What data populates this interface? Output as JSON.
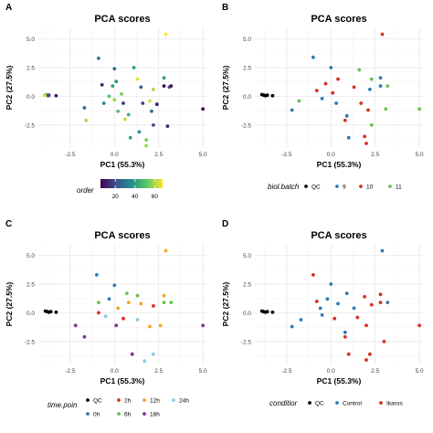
{
  "panels": [
    {
      "letter": "A",
      "title": "PCA scores"
    },
    {
      "letter": "B",
      "title": "PCA scores"
    },
    {
      "letter": "C",
      "title": "PCA scores"
    },
    {
      "letter": "D",
      "title": "PCA scores"
    }
  ],
  "colors": {
    "qc": "#000000",
    "batch_9": "#2c7bb6",
    "batch_10": "#d7301f",
    "batch_11": "#66c24a",
    "control": "#2c7bb6",
    "ikaros": "#d7301f",
    "viridis": [
      "#440154",
      "#3b528b",
      "#21908c",
      "#5dc863",
      "#fde725"
    ]
  },
  "legends": {
    "A": {
      "title": "order",
      "ticks": [
        "20",
        "40",
        "60"
      ],
      "range": [
        5,
        68
      ]
    },
    "B": {
      "title": "biol.batch",
      "items": [
        {
          "label": "QC",
          "color": "#000000"
        },
        {
          "label": "9",
          "color": "#2c7bb6"
        },
        {
          "label": "10",
          "color": "#d7301f"
        },
        {
          "label": "11",
          "color": "#66c24a"
        }
      ]
    },
    "C": {
      "title": "time.poin",
      "items": [
        {
          "label": "QC",
          "color": "#000000"
        },
        {
          "label": "2h",
          "color": "#d7301f"
        },
        {
          "label": "12h",
          "color": "#f5a623"
        },
        {
          "label": "24h",
          "color": "#8ecae6"
        },
        {
          "label": "0h",
          "color": "#2c7bb6"
        },
        {
          "label": "6h",
          "color": "#66c24a"
        },
        {
          "label": "18h",
          "color": "#7b3294"
        }
      ]
    },
    "D": {
      "title": "conditior",
      "items": [
        {
          "label": "QC",
          "color": "#000000"
        },
        {
          "label": "Control",
          "color": "#2c7bb6"
        },
        {
          "label": "Ikaros",
          "color": "#d7301f"
        }
      ]
    }
  },
  "chart_data": [
    {
      "type": "scatter",
      "panel": "A",
      "title": "PCA scores",
      "xlabel": "PC1 (55.3%)",
      "ylabel": "PC2 (27.5%)",
      "xlim": [
        -4.3,
        5.2
      ],
      "ylim": [
        -4.5,
        6.0
      ],
      "xticks": [
        -2.5,
        0.0,
        2.5,
        5.0
      ],
      "yticks": [
        -2.5,
        0.0,
        2.5,
        5.0
      ],
      "xtick_labels": [
        "-2.5",
        "0.0",
        "2.5",
        "5.0"
      ],
      "ytick_labels": [
        "-2.5",
        "0.0",
        "2.5",
        "5.0"
      ],
      "grid": true,
      "color_by": "order",
      "points": [
        {
          "x": -3.9,
          "y": 0.15,
          "order": 60
        },
        {
          "x": -3.85,
          "y": 0.1,
          "order": 55
        },
        {
          "x": -3.8,
          "y": 0.12,
          "order": 45
        },
        {
          "x": -3.75,
          "y": 0.05,
          "order": 30
        },
        {
          "x": -3.7,
          "y": 0.1,
          "order": 20
        },
        {
          "x": -3.3,
          "y": 0.05,
          "order": 10
        },
        {
          "x": -3.95,
          "y": 0.08,
          "order": 65
        },
        {
          "x": -1.7,
          "y": -1.0,
          "order": 25
        },
        {
          "x": -1.6,
          "y": -2.1,
          "order": 60
        },
        {
          "x": -0.9,
          "y": 3.3,
          "order": 30
        },
        {
          "x": -0.7,
          "y": 1.0,
          "order": 12
        },
        {
          "x": -0.6,
          "y": -0.6,
          "order": 35
        },
        {
          "x": -0.3,
          "y": 0.0,
          "order": 50
        },
        {
          "x": -0.1,
          "y": 0.9,
          "order": 40
        },
        {
          "x": 0.0,
          "y": 2.4,
          "order": 28
        },
        {
          "x": 0.1,
          "y": 1.3,
          "order": 38
        },
        {
          "x": 0.4,
          "y": 0.2,
          "order": 55
        },
        {
          "x": 0.0,
          "y": -0.3,
          "order": 58
        },
        {
          "x": 0.5,
          "y": -0.6,
          "order": 15
        },
        {
          "x": 0.6,
          "y": -2.0,
          "order": 62
        },
        {
          "x": 0.8,
          "y": -1.6,
          "order": 45
        },
        {
          "x": 0.2,
          "y": -1.3,
          "order": 50
        },
        {
          "x": 0.9,
          "y": -3.6,
          "order": 42
        },
        {
          "x": 1.4,
          "y": -3.1,
          "order": 35
        },
        {
          "x": 1.5,
          "y": 0.8,
          "order": 22
        },
        {
          "x": 1.3,
          "y": 1.5,
          "order": 65
        },
        {
          "x": 1.6,
          "y": -0.6,
          "order": 18
        },
        {
          "x": 2.0,
          "y": -0.4,
          "order": 64
        },
        {
          "x": 2.1,
          "y": -1.3,
          "order": 30
        },
        {
          "x": 2.2,
          "y": -2.5,
          "order": 20
        },
        {
          "x": 2.2,
          "y": 0.6,
          "order": 60
        },
        {
          "x": 2.4,
          "y": -0.7,
          "order": 10
        },
        {
          "x": 1.8,
          "y": -3.8,
          "order": 55
        },
        {
          "x": 1.8,
          "y": -4.3,
          "order": 58
        },
        {
          "x": 2.8,
          "y": 1.6,
          "order": 40
        },
        {
          "x": 2.8,
          "y": 0.9,
          "order": 5
        },
        {
          "x": 2.9,
          "y": 5.4,
          "order": 68
        },
        {
          "x": 3.1,
          "y": 0.8,
          "order": 25
        },
        {
          "x": 3.2,
          "y": 0.9,
          "order": 8
        },
        {
          "x": 5.0,
          "y": -1.1,
          "order": 5
        },
        {
          "x": 3.0,
          "y": -2.6,
          "order": 12
        },
        {
          "x": 1.1,
          "y": 2.5,
          "order": 40
        }
      ]
    },
    {
      "type": "scatter",
      "panel": "B",
      "title": "PCA scores",
      "xlabel": "PC1 (55.3%)",
      "ylabel": "PC2 (27.5%)",
      "xlim": [
        -4.3,
        5.2
      ],
      "ylim": [
        -4.5,
        6.0
      ],
      "xticks": [
        -2.5,
        0.0,
        2.5,
        5.0
      ],
      "yticks": [
        -2.5,
        0.0,
        2.5,
        5.0
      ],
      "xtick_labels": [
        "-2.5",
        "0.0",
        "2.5",
        "5.0"
      ],
      "ytick_labels": [
        "-2.5",
        "0.0",
        "2.5",
        "5.0"
      ],
      "grid": true,
      "color_by": "biol.batch",
      "points": [
        {
          "x": -3.9,
          "y": 0.15,
          "g": "QC"
        },
        {
          "x": -3.8,
          "y": 0.1,
          "g": "QC"
        },
        {
          "x": -3.7,
          "y": 0.05,
          "g": "QC"
        },
        {
          "x": -3.6,
          "y": 0.1,
          "g": "QC"
        },
        {
          "x": -3.3,
          "y": 0.05,
          "g": "QC"
        },
        {
          "x": -2.2,
          "y": -1.2,
          "g": "9"
        },
        {
          "x": -1.8,
          "y": -0.4,
          "g": "11"
        },
        {
          "x": -1.0,
          "y": 3.4,
          "g": "9"
        },
        {
          "x": -0.8,
          "y": 0.5,
          "g": "10"
        },
        {
          "x": -0.5,
          "y": -0.2,
          "g": "9"
        },
        {
          "x": -0.3,
          "y": 1.1,
          "g": "10"
        },
        {
          "x": 0.0,
          "y": 2.5,
          "g": "9"
        },
        {
          "x": 0.1,
          "y": 0.3,
          "g": "10"
        },
        {
          "x": 0.3,
          "y": -0.6,
          "g": "9"
        },
        {
          "x": 0.4,
          "y": 1.5,
          "g": "10"
        },
        {
          "x": 0.8,
          "y": -2.1,
          "g": "10"
        },
        {
          "x": 0.9,
          "y": -1.7,
          "g": "9"
        },
        {
          "x": 1.0,
          "y": -3.6,
          "g": "9"
        },
        {
          "x": 1.3,
          "y": 0.8,
          "g": "10"
        },
        {
          "x": 1.6,
          "y": 2.3,
          "g": "11"
        },
        {
          "x": 1.7,
          "y": -0.6,
          "g": "10"
        },
        {
          "x": 1.9,
          "y": -3.5,
          "g": "10"
        },
        {
          "x": 2.0,
          "y": -4.1,
          "g": "10"
        },
        {
          "x": 2.1,
          "y": -1.2,
          "g": "10"
        },
        {
          "x": 2.2,
          "y": 0.6,
          "g": "9"
        },
        {
          "x": 2.3,
          "y": -2.5,
          "g": "11"
        },
        {
          "x": 2.3,
          "y": 1.5,
          "g": "11"
        },
        {
          "x": 2.8,
          "y": 1.6,
          "g": "9"
        },
        {
          "x": 2.8,
          "y": 0.9,
          "g": "9"
        },
        {
          "x": 2.9,
          "y": 5.4,
          "g": "10"
        },
        {
          "x": 3.2,
          "y": 0.9,
          "g": "11"
        },
        {
          "x": 3.1,
          "y": -1.1,
          "g": "11"
        },
        {
          "x": 5.0,
          "y": -1.1,
          "g": "11"
        }
      ]
    },
    {
      "type": "scatter",
      "panel": "C",
      "title": "PCA scores",
      "xlabel": "PC1 (55.3%)",
      "ylabel": "PC2 (27.5%)",
      "xlim": [
        -4.3,
        5.2
      ],
      "ylim": [
        -4.5,
        6.0
      ],
      "xticks": [
        -2.5,
        0.0,
        2.5,
        5.0
      ],
      "yticks": [
        -2.5,
        0.0,
        2.5,
        5.0
      ],
      "xtick_labels": [
        "-2.5",
        "0.0",
        "2.5",
        "5.0"
      ],
      "ytick_labels": [
        "-2.5",
        "0.0",
        "2.5",
        "5.0"
      ],
      "grid": true,
      "color_by": "time.poin",
      "points": [
        {
          "x": -3.9,
          "y": 0.15,
          "g": "QC"
        },
        {
          "x": -3.8,
          "y": 0.1,
          "g": "QC"
        },
        {
          "x": -3.7,
          "y": 0.05,
          "g": "QC"
        },
        {
          "x": -3.6,
          "y": 0.1,
          "g": "QC"
        },
        {
          "x": -3.3,
          "y": 0.05,
          "g": "QC"
        },
        {
          "x": -2.2,
          "y": -1.1,
          "g": "18h"
        },
        {
          "x": -1.7,
          "y": -2.1,
          "g": "18h"
        },
        {
          "x": -1.0,
          "y": 3.3,
          "g": "0h"
        },
        {
          "x": -0.9,
          "y": 0.9,
          "g": "6h"
        },
        {
          "x": -0.9,
          "y": 0.0,
          "g": "2h"
        },
        {
          "x": -0.5,
          "y": -0.3,
          "g": "24h"
        },
        {
          "x": -0.3,
          "y": 1.2,
          "g": "0h"
        },
        {
          "x": 0.0,
          "y": 2.4,
          "g": "0h"
        },
        {
          "x": 0.1,
          "y": -1.1,
          "g": "18h"
        },
        {
          "x": 0.2,
          "y": 0.4,
          "g": "12h"
        },
        {
          "x": 0.5,
          "y": -0.5,
          "g": "2h"
        },
        {
          "x": 0.8,
          "y": 0.9,
          "g": "12h"
        },
        {
          "x": 1.0,
          "y": -3.6,
          "g": "18h"
        },
        {
          "x": 1.3,
          "y": 1.5,
          "g": "6h"
        },
        {
          "x": 1.3,
          "y": -0.6,
          "g": "24h"
        },
        {
          "x": 1.5,
          "y": 0.8,
          "g": "12h"
        },
        {
          "x": 2.0,
          "y": -1.2,
          "g": "12h"
        },
        {
          "x": 2.2,
          "y": -3.6,
          "g": "24h"
        },
        {
          "x": 1.7,
          "y": -4.2,
          "g": "24h"
        },
        {
          "x": 2.2,
          "y": 0.6,
          "g": "2h"
        },
        {
          "x": 2.8,
          "y": 1.5,
          "g": "12h"
        },
        {
          "x": 2.8,
          "y": 0.9,
          "g": "6h"
        },
        {
          "x": 2.9,
          "y": 5.4,
          "g": "12h"
        },
        {
          "x": 3.2,
          "y": 0.9,
          "g": "6h"
        },
        {
          "x": 2.6,
          "y": -1.1,
          "g": "12h"
        },
        {
          "x": 5.0,
          "y": -1.1,
          "g": "18h"
        },
        {
          "x": 0.7,
          "y": 1.7,
          "g": "6h"
        }
      ]
    },
    {
      "type": "scatter",
      "panel": "D",
      "title": "PCA scores",
      "xlabel": "PC1 (55.3%)",
      "ylabel": "PC2 (27.5%)",
      "xlim": [
        -4.3,
        5.2
      ],
      "ylim": [
        -4.5,
        6.0
      ],
      "xticks": [
        -2.5,
        0.0,
        2.5,
        5.0
      ],
      "yticks": [
        -2.5,
        0.0,
        2.5,
        5.0
      ],
      "xtick_labels": [
        "-2.5",
        "0.0",
        "2.5",
        "5.0"
      ],
      "ytick_labels": [
        "-2.5",
        "0.0",
        "2.5",
        "5.0"
      ],
      "grid": true,
      "color_by": "conditior",
      "points": [
        {
          "x": -3.9,
          "y": 0.15,
          "g": "QC"
        },
        {
          "x": -3.8,
          "y": 0.1,
          "g": "QC"
        },
        {
          "x": -3.7,
          "y": 0.05,
          "g": "QC"
        },
        {
          "x": -3.6,
          "y": 0.1,
          "g": "QC"
        },
        {
          "x": -3.3,
          "y": 0.05,
          "g": "QC"
        },
        {
          "x": -2.2,
          "y": -1.2,
          "g": "Control"
        },
        {
          "x": -1.7,
          "y": -0.6,
          "g": "Control"
        },
        {
          "x": -1.0,
          "y": 3.3,
          "g": "Ikaros"
        },
        {
          "x": -0.8,
          "y": 1.0,
          "g": "Ikaros"
        },
        {
          "x": -0.6,
          "y": 0.4,
          "g": "Control"
        },
        {
          "x": -0.5,
          "y": -0.2,
          "g": "Control"
        },
        {
          "x": -0.2,
          "y": 1.2,
          "g": "Control"
        },
        {
          "x": 0.0,
          "y": 2.5,
          "g": "Control"
        },
        {
          "x": 0.2,
          "y": -0.5,
          "g": "Ikaros"
        },
        {
          "x": 0.4,
          "y": 0.8,
          "g": "Control"
        },
        {
          "x": 0.8,
          "y": -2.1,
          "g": "Ikaros"
        },
        {
          "x": 0.8,
          "y": -1.7,
          "g": "Control"
        },
        {
          "x": 1.0,
          "y": -3.6,
          "g": "Ikaros"
        },
        {
          "x": 1.3,
          "y": 0.4,
          "g": "Control"
        },
        {
          "x": 1.5,
          "y": -0.4,
          "g": "Ikaros"
        },
        {
          "x": 1.9,
          "y": 1.4,
          "g": "Ikaros"
        },
        {
          "x": 2.0,
          "y": -1.1,
          "g": "Ikaros"
        },
        {
          "x": 2.2,
          "y": -3.6,
          "g": "Ikaros"
        },
        {
          "x": 2.0,
          "y": -4.1,
          "g": "Ikaros"
        },
        {
          "x": 2.3,
          "y": 0.7,
          "g": "Ikaros"
        },
        {
          "x": 2.8,
          "y": 1.6,
          "g": "Ikaros"
        },
        {
          "x": 2.8,
          "y": 0.9,
          "g": "Ikaros"
        },
        {
          "x": 2.9,
          "y": 5.4,
          "g": "Control"
        },
        {
          "x": 3.2,
          "y": 0.9,
          "g": "Control"
        },
        {
          "x": 3.0,
          "y": -2.5,
          "g": "Ikaros"
        },
        {
          "x": 5.0,
          "y": -1.1,
          "g": "Ikaros"
        },
        {
          "x": 0.9,
          "y": 1.7,
          "g": "Control"
        }
      ]
    }
  ]
}
